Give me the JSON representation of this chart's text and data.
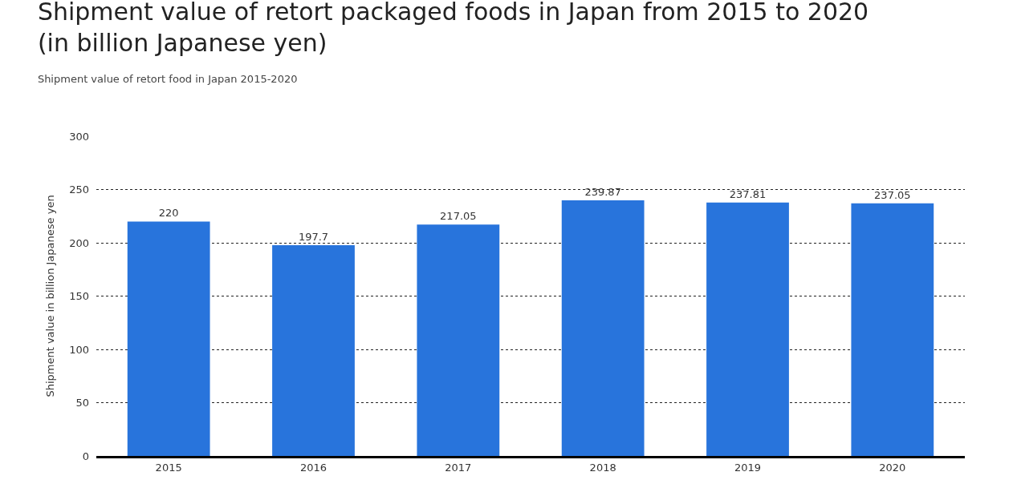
{
  "chart_data": {
    "type": "bar",
    "title": "Shipment value of retort packaged foods in Japan from 2015 to 2020 (in billion Japanese yen)",
    "subtitle": "Shipment value of retort food in Japan 2015-2020",
    "ylabel": "Shipment value in billion Japanese yen",
    "categories": [
      "2015",
      "2016",
      "2017",
      "2018",
      "2019",
      "2020"
    ],
    "values": [
      220,
      197.7,
      217.05,
      239.87,
      237.81,
      237.05
    ],
    "color": "#2874dc",
    "ylim": [
      0,
      300
    ],
    "yticks": [
      0,
      50,
      100,
      150,
      200,
      250,
      300
    ],
    "grid": "y",
    "data_labels": true
  }
}
